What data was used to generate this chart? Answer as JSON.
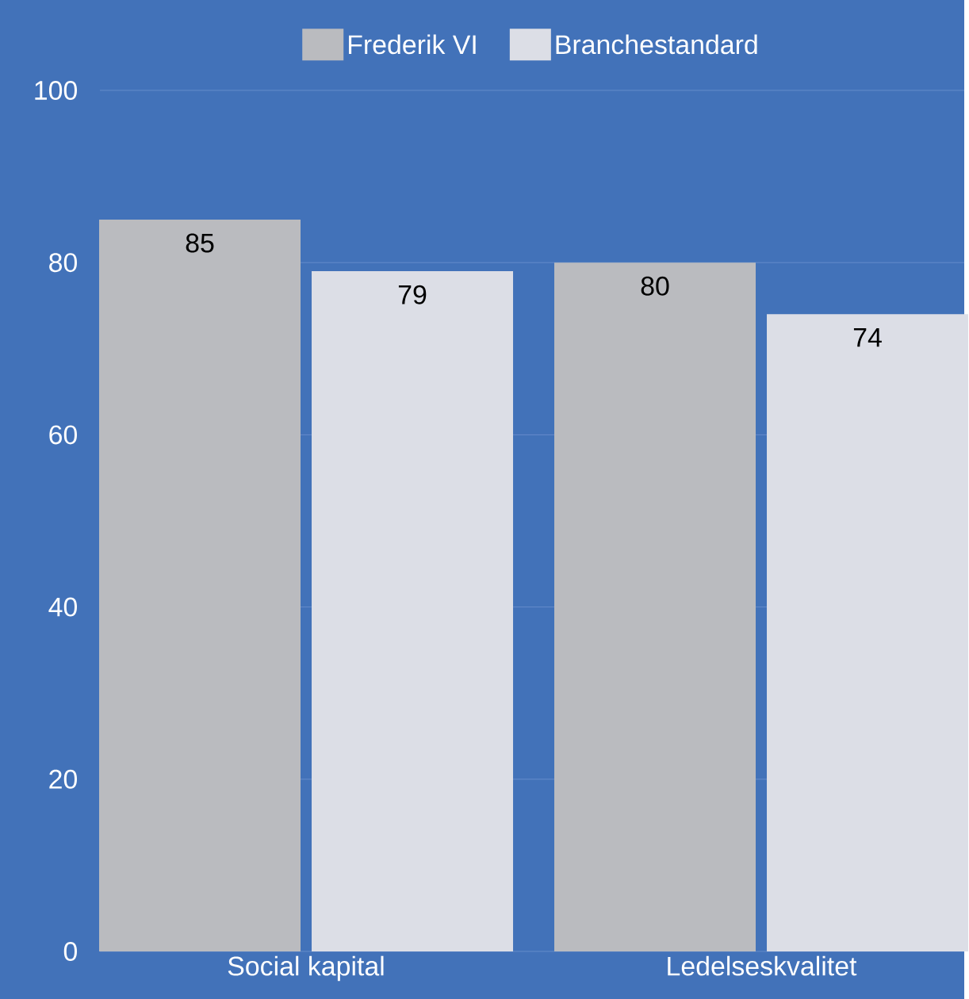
{
  "chart_data": {
    "type": "bar",
    "categories": [
      "Social kapital",
      "Ledelseskvalitet"
    ],
    "series": [
      {
        "name": "Frederik VI",
        "color": "#babbbf",
        "values": [
          85,
          80
        ]
      },
      {
        "name": "Branchestandard",
        "color": "#dcdee6",
        "values": [
          79,
          74
        ]
      }
    ],
    "ylim": [
      0,
      100
    ],
    "yticks": [
      0,
      20,
      40,
      60,
      80,
      100
    ],
    "grid": "y",
    "legend": "top",
    "data_labels": true
  }
}
